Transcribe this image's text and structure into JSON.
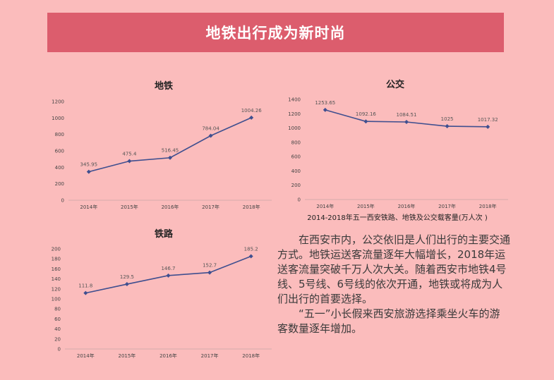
{
  "banner": {
    "title": "地铁出行成为新时尚"
  },
  "caption": "2014-2018年五一西安铁路、地铁及公交载客量(万人次 )",
  "body": {
    "paragraph1": "在西安市内，公交依旧是人们出行的主要交通方式。地铁运送客流量逐年大幅增长，2018年运送客流量突破千万人次大关。随着西安市地铁4号线、5号线、6号线的依次开通，地铁或将成为人们出行的首要选择。",
    "paragraph2": "“五一”小长假来西安旅游选择乘坐火车的游客数量逐年增加。"
  },
  "colors": {
    "line": "#3f4f8f",
    "banner": "#dc5d6d",
    "background": "#fbbcbc"
  },
  "chart_data": [
    {
      "id": "metro",
      "type": "line",
      "title": "地铁",
      "categories": [
        "2014年",
        "2015年",
        "2016年",
        "2017年",
        "2018年"
      ],
      "values": [
        345.95,
        475.4,
        516.45,
        784.04,
        1004.26
      ],
      "labels": [
        "345.95",
        "475.4",
        "516.45",
        "784.04",
        "1004.26"
      ],
      "yticks": [
        "0",
        "200",
        "400",
        "600",
        "800",
        "1000",
        "1200"
      ],
      "ylim": [
        0,
        1200
      ],
      "grid": false
    },
    {
      "id": "bus",
      "type": "line",
      "title": "公交",
      "categories": [
        "2014年",
        "2015年",
        "2016年",
        "2017年",
        "2018年"
      ],
      "values": [
        1253.65,
        1092.16,
        1084.51,
        1025,
        1017.32
      ],
      "labels": [
        "1253.65",
        "1092.16",
        "1084.51",
        "1025",
        "1017.32"
      ],
      "yticks": [
        "0",
        "200",
        "400",
        "600",
        "800",
        "1000",
        "1200",
        "1400"
      ],
      "ylim": [
        0,
        1400
      ],
      "grid": false
    },
    {
      "id": "rail",
      "type": "line",
      "title": "铁路",
      "categories": [
        "2014年",
        "2015年",
        "2016年",
        "2017年",
        "2018年"
      ],
      "values": [
        111.8,
        129.5,
        146.7,
        152.7,
        185.2
      ],
      "labels": [
        "111.8",
        "129.5",
        "146.7",
        "152.7",
        "185.2"
      ],
      "yticks": [
        "0",
        "20",
        "40",
        "60",
        "80",
        "100",
        "120",
        "140",
        "160",
        "180",
        "200"
      ],
      "ylim": [
        0,
        200
      ],
      "grid": false
    }
  ]
}
